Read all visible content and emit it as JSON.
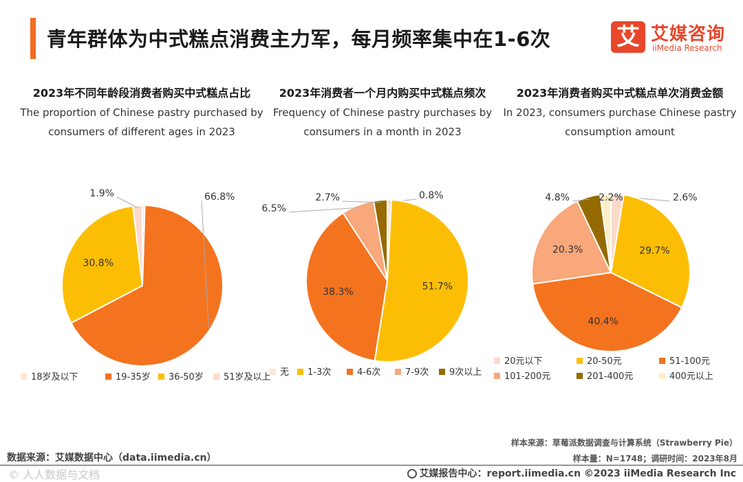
{
  "header": {
    "title": "青年群体为中式糕点消费主力军，每月频率集中在1-6次",
    "logo_cn": "艾媒咨询",
    "logo_en": "iiMedia Research",
    "logo_mark": "艾"
  },
  "chart_data": [
    {
      "type": "pie",
      "title": "2023年不同年龄段消费者购买中式糕点占比",
      "subtitle": "The proportion of Chinese pastry purchased by consumers of different ages in 2023",
      "categories": [
        "18岁及以下",
        "19-35岁",
        "36-50岁",
        "51岁及以上"
      ],
      "values": [
        0.5,
        66.8,
        30.8,
        1.9
      ],
      "labels": [
        "0.5%",
        "66.8%",
        "30.8%",
        "1.9%"
      ],
      "colors": [
        "#fde6d5",
        "#f4731f",
        "#fcbe05",
        "#fcdacb"
      ],
      "legend_position": "bottom"
    },
    {
      "type": "pie",
      "title": "2023年消费者一个月内购买中式糕点频次",
      "subtitle": "Frequency of Chinese pastry purchases by consumers in a month in 2023",
      "categories": [
        "无",
        "1-3次",
        "4-6次",
        "7-9次",
        "9次以上"
      ],
      "values": [
        0.8,
        51.7,
        38.3,
        6.5,
        2.7
      ],
      "labels": [
        "0.8%",
        "51.7%",
        "38.3%",
        "6.5%",
        "2.7%"
      ],
      "colors": [
        "#fde6d5",
        "#fcbe05",
        "#f4731f",
        "#f8a87a",
        "#956a00"
      ],
      "legend_position": "bottom"
    },
    {
      "type": "pie",
      "title": "2023年消费者购买中式糕点单次消费金额",
      "subtitle": "In 2023, consumers purchase Chinese pastry consumption amount",
      "categories": [
        "20元以下",
        "20-50元",
        "51-100元",
        "101-200元",
        "201-400元",
        "400元以上"
      ],
      "values": [
        2.6,
        29.7,
        40.4,
        20.3,
        4.8,
        2.2
      ],
      "labels": [
        "2.6%",
        "29.7%",
        "40.4%",
        "20.3%",
        "4.8%",
        "2.2%"
      ],
      "colors": [
        "#fcdacb",
        "#fcbe05",
        "#f4731f",
        "#f8a87a",
        "#956a00",
        "#fdf0c8"
      ],
      "legend_position": "bottom"
    }
  ],
  "notes": {
    "sample_source": "样本来源：草莓派数据调查与计算系统（Strawberry Pie）",
    "sample_size": "样本量：N=1748；调研时间：2023年8月"
  },
  "footer": {
    "data_source": "数据来源：艾媒数据中心（data.iimedia.cn）",
    "watermark": "©  人人数据与文档",
    "report_center": "艾媒报告中心：report.iimedia.cn  ©2023  iiMedia Research  Inc"
  }
}
